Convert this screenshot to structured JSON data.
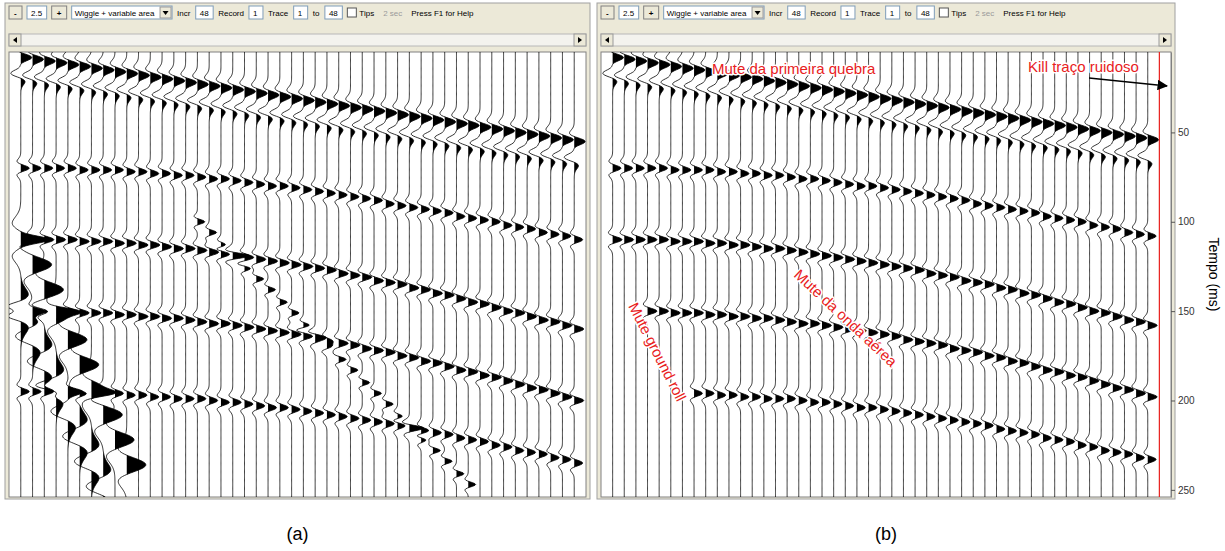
{
  "chart_data": [
    {
      "type": "wiggle",
      "caption": "(a)",
      "toolbar": [
        {
          "kind": "button",
          "text": "-"
        },
        {
          "kind": "field",
          "text": "2.5"
        },
        {
          "kind": "button",
          "text": "+"
        },
        {
          "kind": "dropdown",
          "text": "Wiggle + variable area"
        },
        {
          "kind": "label",
          "text": "Incr"
        },
        {
          "kind": "field",
          "text": "48"
        },
        {
          "kind": "label",
          "text": "Record"
        },
        {
          "kind": "field",
          "text": "1"
        },
        {
          "kind": "label",
          "text": "Trace"
        },
        {
          "kind": "field",
          "text": "1"
        },
        {
          "kind": "label",
          "text": "to"
        },
        {
          "kind": "field",
          "text": "48"
        },
        {
          "kind": "checkbox",
          "text": "Tips"
        },
        {
          "kind": "hint",
          "text": "2 sec"
        },
        {
          "kind": "label",
          "text": "Press F1 for Help"
        }
      ],
      "xlim": [
        0,
        49
      ],
      "ylim": [
        5,
        254
      ],
      "tick_labels": false,
      "color": "#000000",
      "events": [
        {
          "amplitude": 1.0,
          "period": 12,
          "times": [
            8,
            9,
            10,
            11,
            12,
            13,
            14,
            15,
            16,
            17,
            18,
            19,
            20,
            21,
            22,
            23,
            24,
            25,
            26,
            27,
            28,
            29,
            30,
            31,
            32,
            33,
            34,
            35,
            36,
            37,
            38,
            39,
            40,
            41,
            42,
            43,
            44,
            45,
            46,
            47,
            48,
            49,
            50,
            51,
            52,
            53,
            54,
            55
          ]
        },
        {
          "amplitude": -0.9,
          "period": 12,
          "times": [
            17,
            18,
            19,
            20,
            21,
            22,
            23,
            24,
            25,
            26,
            27,
            28,
            29,
            30,
            31,
            32,
            33,
            34,
            35,
            36,
            37,
            38,
            39,
            40,
            41,
            42,
            43,
            44,
            45,
            46,
            47,
            48,
            49,
            50,
            51,
            52,
            53,
            54,
            55,
            56,
            57,
            58,
            59,
            60,
            61,
            62,
            63,
            64
          ]
        },
        {
          "amplitude": 0.8,
          "period": 10,
          "times": [
            70,
            70,
            70,
            70,
            70,
            71,
            71,
            71,
            71,
            72,
            72,
            73,
            73,
            74,
            74,
            75,
            76,
            76,
            77,
            78,
            79,
            80,
            80,
            81,
            82,
            83,
            84,
            85,
            86,
            87,
            88,
            90,
            91,
            92,
            93,
            94,
            95,
            97,
            98,
            99,
            100,
            102,
            103,
            104,
            106,
            107,
            108,
            110
          ]
        },
        {
          "amplitude": 0.9,
          "period": 10,
          "times": [
            110,
            110,
            110,
            110,
            110,
            111,
            111,
            111,
            112,
            112,
            113,
            113,
            114,
            115,
            115,
            116,
            117,
            118,
            119,
            120,
            121,
            122,
            123,
            124,
            125,
            126,
            127,
            129,
            130,
            131,
            133,
            134,
            135,
            137,
            138,
            140,
            141,
            143,
            145,
            146,
            148,
            150,
            151,
            153,
            155,
            156,
            158,
            160
          ]
        },
        {
          "amplitude": 0.9,
          "period": 10,
          "times": [
            150,
            150,
            150,
            150,
            150,
            151,
            151,
            151,
            152,
            152,
            153,
            153,
            154,
            154,
            155,
            156,
            157,
            157,
            158,
            159,
            160,
            161,
            162,
            163,
            164,
            166,
            167,
            168,
            169,
            171,
            172,
            173,
            175,
            176,
            178,
            179,
            181,
            183,
            184,
            186,
            187,
            189,
            191,
            193,
            194,
            196,
            198,
            200
          ]
        },
        {
          "amplitude": 0.8,
          "period": 10,
          "times": [
            195,
            195,
            195,
            195,
            195,
            196,
            196,
            196,
            196,
            197,
            197,
            198,
            198,
            199,
            199,
            199,
            200,
            201,
            201,
            202,
            203,
            204,
            204,
            205,
            206,
            207,
            208,
            209,
            210,
            211,
            212,
            213,
            214,
            216,
            217,
            218,
            219,
            221,
            222,
            223,
            225,
            226,
            228,
            229,
            230,
            232,
            233,
            235
          ]
        },
        {
          "amplitude": 0.7,
          "period": 8,
          "times": [
            null,
            null,
            null,
            null,
            null,
            null,
            null,
            null,
            null,
            null,
            null,
            null,
            null,
            null,
            null,
            100,
            106,
            113,
            119,
            126,
            132,
            138,
            145,
            151,
            158,
            164,
            170,
            177,
            183,
            190,
            196,
            202,
            209,
            215,
            222,
            228,
            234,
            241,
            247,
            null,
            null,
            null,
            null,
            null,
            null,
            null,
            null,
            null
          ]
        },
        {
          "amplitude": 1.8,
          "period": 24,
          "times": [
            110,
            124,
            138,
            152,
            166,
            180,
            194,
            208,
            222,
            236,
            null,
            null,
            null,
            null,
            null,
            null,
            null,
            null,
            null,
            null,
            null,
            null,
            null,
            null,
            null,
            null,
            null,
            null,
            null,
            null,
            null,
            null,
            null,
            null,
            null,
            null,
            null,
            null,
            null,
            null,
            null,
            null,
            null,
            null,
            null,
            null,
            null,
            null
          ]
        },
        {
          "amplitude": -1.6,
          "period": 24,
          "times": [
            150,
            164,
            178,
            192,
            206,
            220,
            234,
            248,
            null,
            null,
            null,
            null,
            null,
            null,
            null,
            null,
            null,
            null,
            null,
            null,
            null,
            null,
            null,
            null,
            null,
            null,
            null,
            null,
            null,
            null,
            null,
            null,
            null,
            null,
            null,
            null,
            null,
            null,
            null,
            null,
            null,
            null,
            null,
            null,
            null,
            null,
            null,
            null
          ]
        }
      ]
    },
    {
      "type": "wiggle",
      "caption": "(b)",
      "toolbar": [
        {
          "kind": "button",
          "text": "-"
        },
        {
          "kind": "field",
          "text": "2.5"
        },
        {
          "kind": "button",
          "text": "+"
        },
        {
          "kind": "dropdown",
          "text": "Wiggle + variable area"
        },
        {
          "kind": "label",
          "text": "Incr"
        },
        {
          "kind": "field",
          "text": "48"
        },
        {
          "kind": "label",
          "text": "Record"
        },
        {
          "kind": "field",
          "text": "1"
        },
        {
          "kind": "label",
          "text": "Trace"
        },
        {
          "kind": "field",
          "text": "1"
        },
        {
          "kind": "label",
          "text": "to"
        },
        {
          "kind": "field",
          "text": "48"
        },
        {
          "kind": "checkbox",
          "text": "Tips"
        },
        {
          "kind": "hint",
          "text": "2 sec"
        },
        {
          "kind": "label",
          "text": "Press F1 for Help"
        }
      ],
      "xlim": [
        0,
        49
      ],
      "ylim": [
        5,
        254
      ],
      "yticks": [
        50,
        100,
        150,
        200,
        250
      ],
      "y_label": "Tempo (ms)",
      "tick_labels": "y",
      "color": "#000000",
      "killed_traces": [
        {
          "trace": 48,
          "color": "#e8211d"
        }
      ],
      "annotations": [
        {
          "text": "Mute da primeira quebra",
          "color": "#e8211d"
        },
        {
          "text": "Kill traço ruidoso",
          "color": "#e8211d"
        },
        {
          "text": "Mute da onda aérea",
          "color": "#e8211d"
        },
        {
          "text": "Mute ground roll",
          "color": "#e8211d"
        }
      ],
      "events": [
        {
          "amplitude": 1.0,
          "period": 12,
          "times": [
            8,
            9,
            10,
            11,
            12,
            13,
            14,
            15,
            16,
            17,
            18,
            19,
            20,
            21,
            22,
            23,
            24,
            25,
            26,
            27,
            28,
            29,
            30,
            31,
            32,
            33,
            34,
            35,
            36,
            37,
            38,
            39,
            40,
            41,
            42,
            43,
            44,
            45,
            46,
            47,
            48,
            49,
            50,
            51,
            52,
            53,
            54,
            null
          ]
        },
        {
          "amplitude": -0.9,
          "period": 12,
          "times": [
            17,
            18,
            19,
            20,
            21,
            22,
            23,
            24,
            25,
            26,
            27,
            28,
            29,
            30,
            31,
            32,
            33,
            34,
            35,
            36,
            37,
            38,
            39,
            40,
            41,
            42,
            43,
            44,
            45,
            46,
            47,
            48,
            49,
            50,
            51,
            52,
            53,
            54,
            55,
            56,
            57,
            58,
            59,
            60,
            61,
            62,
            63,
            null
          ]
        },
        {
          "amplitude": 0.8,
          "period": 10,
          "times": [
            70,
            70,
            70,
            70,
            70,
            71,
            71,
            71,
            71,
            72,
            72,
            73,
            73,
            74,
            74,
            75,
            76,
            76,
            77,
            78,
            79,
            80,
            80,
            81,
            82,
            83,
            84,
            85,
            86,
            87,
            88,
            90,
            91,
            92,
            93,
            94,
            95,
            97,
            98,
            99,
            100,
            102,
            103,
            104,
            106,
            107,
            108,
            null
          ]
        },
        {
          "amplitude": 0.9,
          "period": 10,
          "times": [
            110,
            110,
            110,
            110,
            110,
            111,
            111,
            111,
            112,
            112,
            113,
            113,
            114,
            115,
            115,
            116,
            117,
            118,
            119,
            120,
            121,
            122,
            123,
            124,
            125,
            126,
            127,
            129,
            130,
            131,
            133,
            134,
            135,
            137,
            138,
            140,
            141,
            143,
            145,
            146,
            148,
            150,
            151,
            153,
            155,
            156,
            158,
            null
          ]
        },
        {
          "amplitude": 0.9,
          "period": 10,
          "times": [
            null,
            null,
            null,
            150,
            150,
            151,
            151,
            151,
            152,
            152,
            153,
            153,
            154,
            154,
            155,
            156,
            157,
            157,
            158,
            159,
            160,
            161,
            162,
            163,
            164,
            166,
            167,
            168,
            169,
            171,
            172,
            173,
            175,
            176,
            178,
            179,
            181,
            183,
            184,
            186,
            187,
            189,
            191,
            193,
            194,
            196,
            198,
            null
          ]
        },
        {
          "amplitude": 0.8,
          "period": 10,
          "times": [
            null,
            null,
            null,
            null,
            null,
            null,
            null,
            196,
            196,
            197,
            197,
            198,
            198,
            199,
            199,
            199,
            200,
            201,
            201,
            202,
            203,
            204,
            204,
            205,
            206,
            207,
            208,
            209,
            210,
            211,
            212,
            213,
            214,
            216,
            217,
            218,
            219,
            221,
            222,
            223,
            225,
            226,
            228,
            229,
            230,
            232,
            233,
            null
          ]
        }
      ]
    }
  ]
}
